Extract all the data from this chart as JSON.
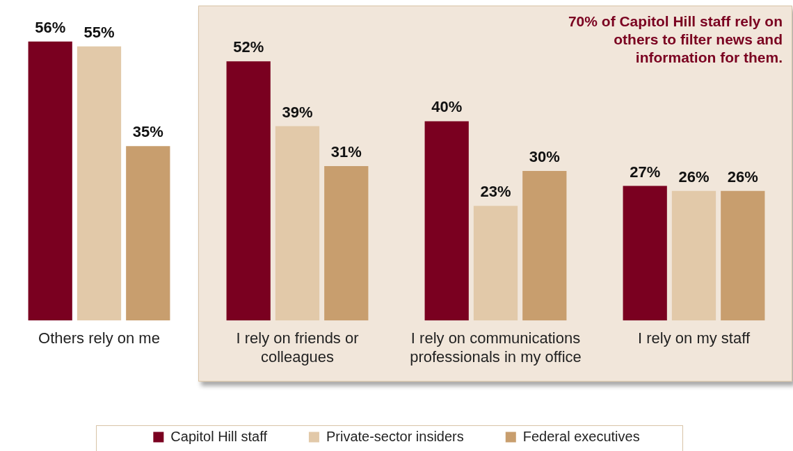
{
  "chart_data": {
    "type": "bar",
    "categories": [
      "Others rely on me",
      "I rely on friends or colleagues",
      "I rely on communications professionals in my office",
      "I rely on my staff"
    ],
    "series": [
      {
        "name": "Capitol Hill staff",
        "color": "#7a0020",
        "values": [
          56,
          52,
          40,
          27
        ],
        "value_labels": [
          "56%",
          "52%",
          "40%",
          "27%"
        ]
      },
      {
        "name": "Private-sector insiders",
        "color": "#e2c9a9",
        "values": [
          55,
          39,
          23,
          26
        ],
        "value_labels": [
          "55%",
          "39%",
          "23%",
          "26%"
        ]
      },
      {
        "name": "Federal executives",
        "color": "#c89e6e",
        "values": [
          35,
          31,
          30,
          26
        ],
        "value_labels": [
          "35%",
          "31%",
          "30%",
          "26%"
        ]
      }
    ],
    "bands": [
      {
        "axis": "x",
        "from": "I rely on friends or colleagues",
        "to": "I rely on my staff",
        "label": "70% of Capitol Hill staff rely on others to filter news and information for them.",
        "color": "#f1e6da"
      }
    ],
    "legend": "bottom",
    "grid": false,
    "tick_labels": "x"
  }
}
